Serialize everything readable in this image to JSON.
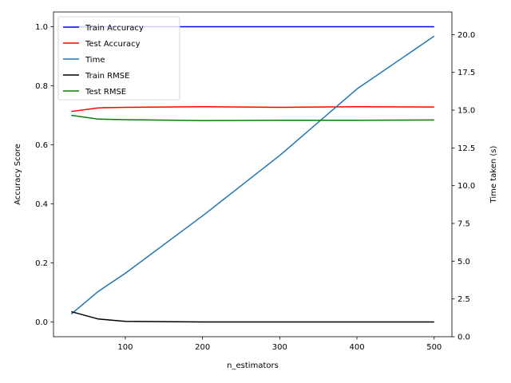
{
  "chart_data": {
    "type": "line",
    "x": [
      30,
      65,
      100,
      200,
      300,
      400,
      500
    ],
    "xlabel": "n_estimators",
    "ylabel": "Accuracy Score",
    "ylabel_right": "Time taken (s)",
    "xlim": [
      7,
      523
    ],
    "ylim": [
      -0.05,
      1.05
    ],
    "ylim_right": [
      0,
      21.5
    ],
    "xticks": [
      100,
      200,
      300,
      400,
      500
    ],
    "yticks": [
      0.0,
      0.2,
      0.4,
      0.6,
      0.8,
      1.0
    ],
    "yticks_right": [
      0.0,
      2.5,
      5.0,
      7.5,
      10.0,
      12.5,
      15.0,
      17.5,
      20.0
    ],
    "grid": false,
    "legend_position": "top-left",
    "series": [
      {
        "name": "Train Accuracy",
        "axis": "left",
        "color": "#0000ff",
        "values": [
          1.0,
          1.0,
          1.0,
          1.0,
          1.0,
          1.0,
          1.0
        ]
      },
      {
        "name": "Test Accuracy",
        "axis": "left",
        "color": "#ff0000",
        "values": [
          0.713,
          0.725,
          0.727,
          0.729,
          0.727,
          0.729,
          0.728
        ]
      },
      {
        "name": "Time",
        "axis": "right",
        "color": "#1f77b4",
        "values": [
          1.5,
          3.0,
          4.2,
          8.0,
          12.0,
          16.4,
          19.9
        ]
      },
      {
        "name": "Train RMSE",
        "axis": "left",
        "color": "#000000",
        "values": [
          0.035,
          0.01,
          0.002,
          0.0,
          0.0,
          0.0,
          0.0
        ]
      },
      {
        "name": "Test RMSE",
        "axis": "left",
        "color": "#008000",
        "values": [
          0.7,
          0.687,
          0.685,
          0.682,
          0.683,
          0.683,
          0.684
        ]
      }
    ]
  }
}
